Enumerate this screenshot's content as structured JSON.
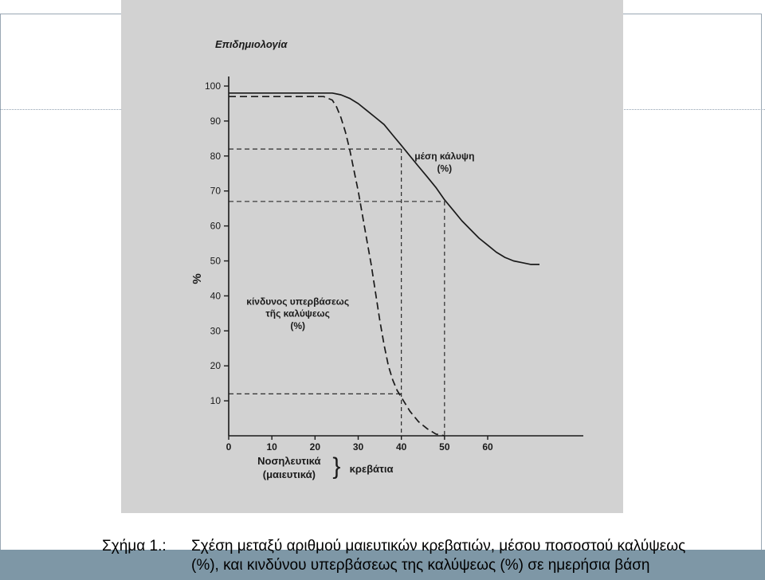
{
  "page": {
    "header_text": "Επιδημιολογία",
    "caption": {
      "label": "Σχήμα 1.:",
      "line1": "Σχέση μεταξύ αριθμού μαιευτικών κρεβατιών, μέσου ποσοστού καλύψεως",
      "line2": "(%), και κινδύνου υπερβάσεως της καλύψεως (%) σε ημερήσια βάση"
    },
    "colors": {
      "scan_background": "#d2d2d2",
      "ink": "#1a1a1a",
      "bottom_band": "#7e97a6",
      "frame": "#9aa7b3"
    }
  },
  "chart_data": {
    "type": "line",
    "ylabel": "%",
    "xlabel_line1": "Νοσηλευτικά",
    "xlabel_line2": "(μαιευτικά)",
    "x_unit_label": "κρεβάτια",
    "xlim": [
      0,
      75
    ],
    "ylim": [
      0,
      100
    ],
    "x_ticks": [
      0,
      10,
      20,
      30,
      40,
      50,
      60
    ],
    "y_ticks": [
      10,
      20,
      30,
      40,
      50,
      60,
      70,
      80,
      90,
      100
    ],
    "grid": false,
    "series": [
      {
        "name": "μέση κάλυψη (%)",
        "label_line1": "μέση κάλυψη",
        "label_line2": "(%)",
        "style": "solid",
        "x": [
          0,
          20,
          22,
          24,
          26,
          28,
          30,
          32,
          34,
          36,
          38,
          40,
          42,
          44,
          46,
          48,
          50,
          52,
          54,
          56,
          58,
          60,
          62,
          64,
          66,
          68,
          70,
          72
        ],
        "y": [
          98,
          98,
          98,
          98,
          97.5,
          96.5,
          95,
          93,
          91,
          89,
          86,
          83,
          80,
          77,
          74,
          71,
          67.5,
          64.5,
          61.5,
          59,
          56.5,
          54.5,
          52.5,
          51,
          50,
          49.5,
          49,
          49
        ]
      },
      {
        "name": "κίνδυνος υπερβάσεως τῆς καλύψεως (%)",
        "label_line1": "κίνδυνος υπερβάσεως",
        "label_line2": "τῆς καλύψεως",
        "label_line3": "(%)",
        "style": "dashed",
        "x": [
          0,
          20,
          22,
          24,
          25,
          26,
          27,
          28,
          29,
          30,
          31,
          32,
          33,
          34,
          35,
          36,
          37,
          38,
          39,
          40,
          42,
          44,
          46,
          48,
          50
        ],
        "y": [
          97,
          97,
          97,
          96,
          94,
          91,
          87,
          82,
          76,
          70,
          63,
          56,
          49,
          41,
          33,
          26,
          20,
          16,
          13,
          11,
          7,
          4,
          2,
          0.5,
          0
        ]
      }
    ],
    "reference_lines": [
      {
        "x": 40,
        "y_high": 82,
        "y_low": 12
      },
      {
        "x": 50,
        "y_high": 67,
        "y_low": 0
      }
    ]
  }
}
